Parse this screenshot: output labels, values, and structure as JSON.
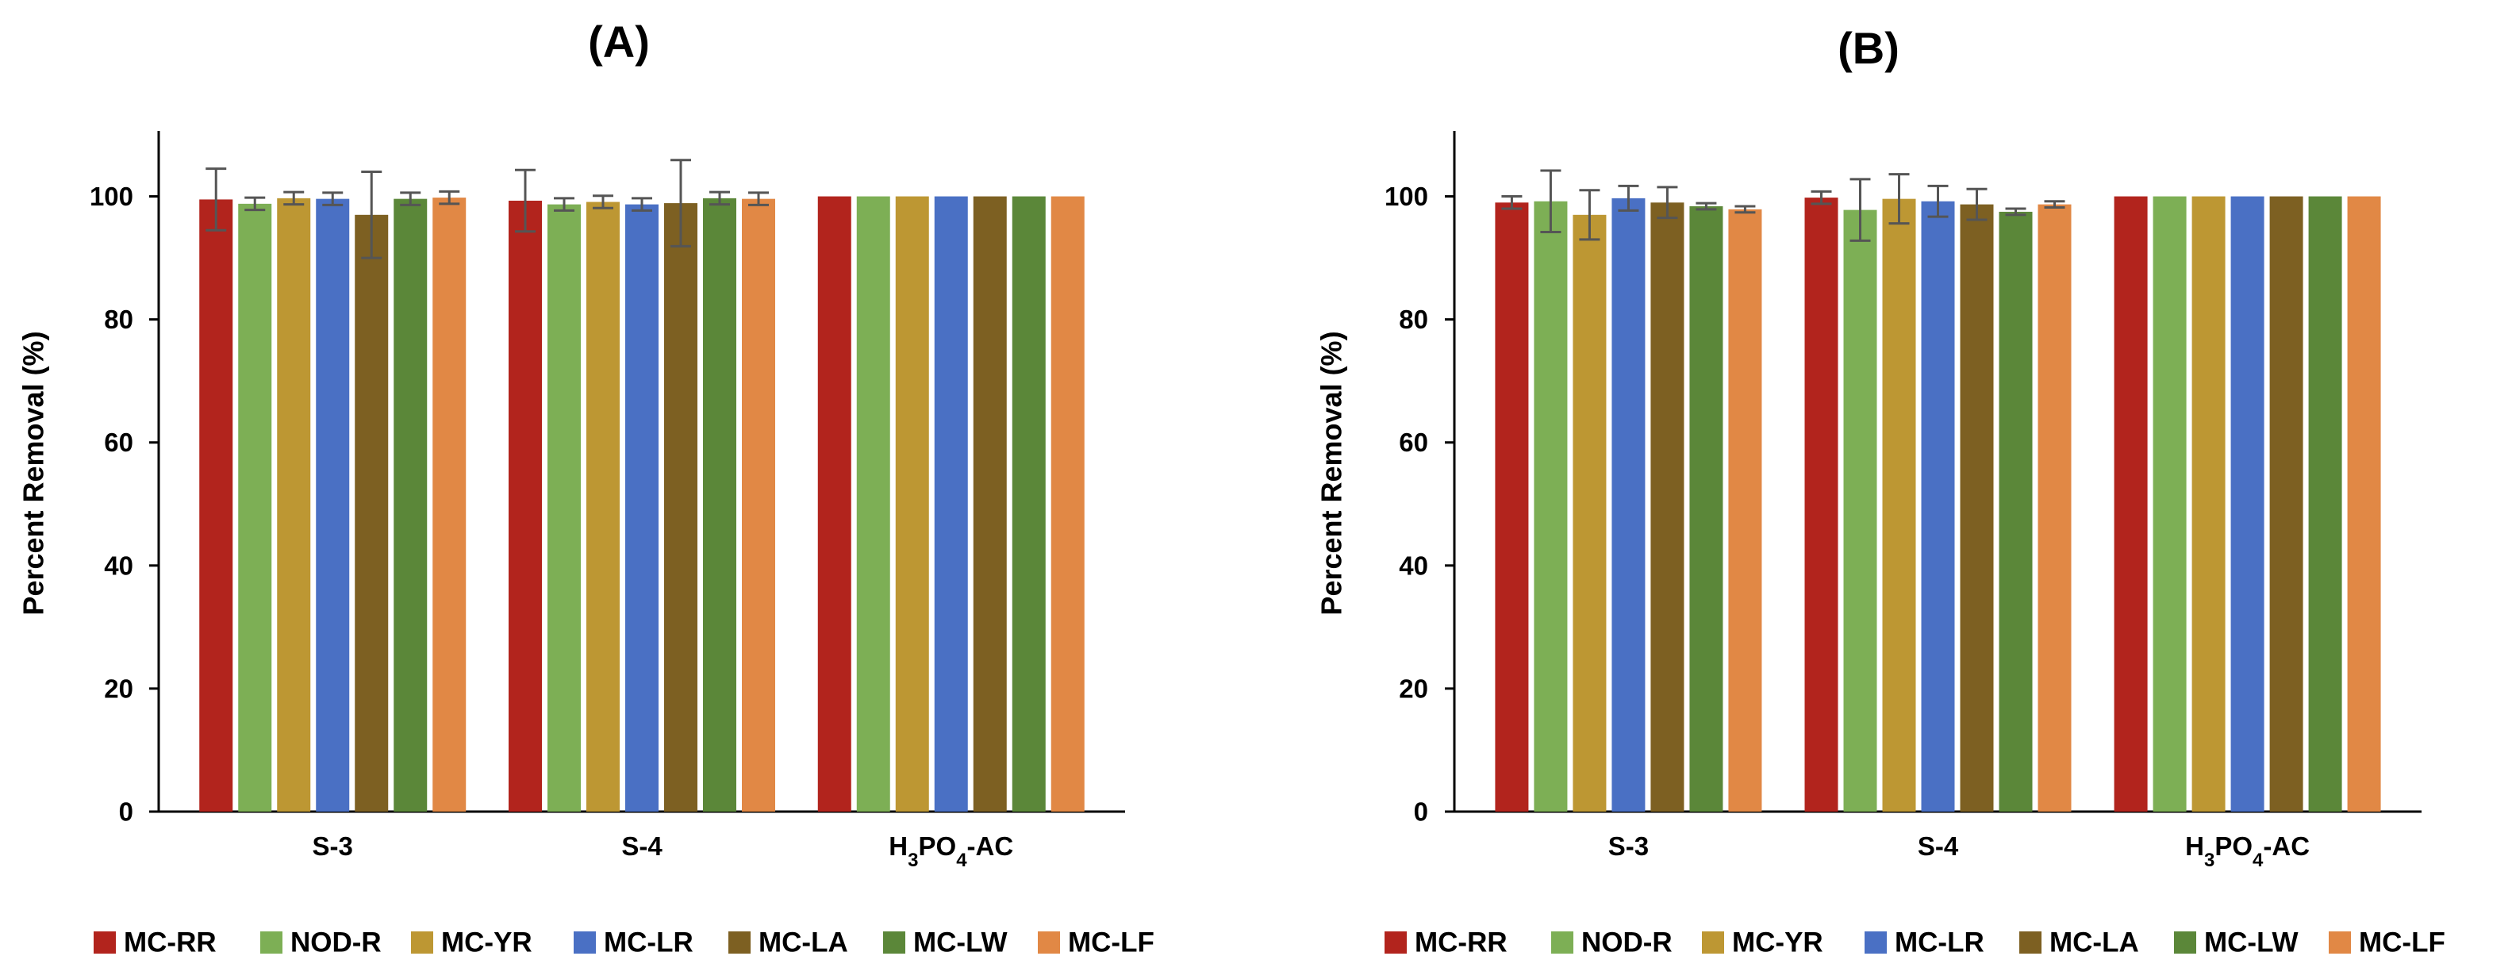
{
  "chart_data": [
    {
      "type": "bar",
      "title": "(A)",
      "xlabel": "",
      "ylabel": "Percent Removal (%)",
      "ylim": [
        0,
        110
      ],
      "yticks": [
        0,
        20,
        40,
        60,
        80,
        100
      ],
      "categories": [
        "S-3",
        "S-4",
        "H3PO4-AC"
      ],
      "categories_display": [
        {
          "main": "S-3",
          "parts": []
        },
        {
          "main": "S-4",
          "parts": []
        },
        {
          "main": "",
          "parts": [
            {
              "t": "H",
              "sub": false
            },
            {
              "t": "3",
              "sub": true
            },
            {
              "t": "PO",
              "sub": false
            },
            {
              "t": "4",
              "sub": true
            },
            {
              "t": "-AC",
              "sub": false
            }
          ]
        }
      ],
      "series": [
        {
          "name": "MC-RR",
          "values": [
            99.5,
            99.3,
            100
          ],
          "errors": [
            5.0,
            5.0,
            0
          ]
        },
        {
          "name": "NOD-R",
          "values": [
            98.8,
            98.7,
            100
          ],
          "errors": [
            1.0,
            1.0,
            0
          ]
        },
        {
          "name": "MC-YR",
          "values": [
            99.7,
            99.1,
            100
          ],
          "errors": [
            1.0,
            1.0,
            0
          ]
        },
        {
          "name": "MC-LR",
          "values": [
            99.6,
            98.7,
            100
          ],
          "errors": [
            1.0,
            1.0,
            0
          ]
        },
        {
          "name": "MC-LA",
          "values": [
            97.0,
            98.9,
            100
          ],
          "errors": [
            7.0,
            7.0,
            0
          ]
        },
        {
          "name": "MC-LW",
          "values": [
            99.6,
            99.7,
            100
          ],
          "errors": [
            1.0,
            1.0,
            0
          ]
        },
        {
          "name": "MC-LF",
          "values": [
            99.8,
            99.6,
            100
          ],
          "errors": [
            1.0,
            1.0,
            0
          ]
        }
      ]
    },
    {
      "type": "bar",
      "title": "(B)",
      "xlabel": "",
      "ylabel": "Percent Removal (%)",
      "ylim": [
        0,
        110
      ],
      "yticks": [
        0,
        20,
        40,
        60,
        80,
        100
      ],
      "categories": [
        "S-3",
        "S-4",
        "H3PO4-AC"
      ],
      "categories_display": [
        {
          "main": "S-3",
          "parts": []
        },
        {
          "main": "S-4",
          "parts": []
        },
        {
          "main": "",
          "parts": [
            {
              "t": "H",
              "sub": false
            },
            {
              "t": "3",
              "sub": true
            },
            {
              "t": "PO",
              "sub": false
            },
            {
              "t": "4",
              "sub": true
            },
            {
              "t": "-AC",
              "sub": false
            }
          ]
        }
      ],
      "series": [
        {
          "name": "MC-RR",
          "values": [
            99.0,
            99.8,
            100
          ],
          "errors": [
            1.0,
            1.0,
            0
          ]
        },
        {
          "name": "NOD-R",
          "values": [
            99.2,
            97.8,
            100
          ],
          "errors": [
            5.0,
            5.0,
            0
          ]
        },
        {
          "name": "MC-YR",
          "values": [
            97.0,
            99.6,
            100
          ],
          "errors": [
            4.0,
            4.0,
            0
          ]
        },
        {
          "name": "MC-LR",
          "values": [
            99.7,
            99.2,
            100
          ],
          "errors": [
            2.0,
            2.5,
            0
          ]
        },
        {
          "name": "MC-LA",
          "values": [
            99.0,
            98.7,
            100
          ],
          "errors": [
            2.5,
            2.5,
            0
          ]
        },
        {
          "name": "MC-LW",
          "values": [
            98.4,
            97.5,
            100
          ],
          "errors": [
            0.5,
            0.5,
            0
          ]
        },
        {
          "name": "MC-LF",
          "values": [
            97.9,
            98.7,
            100
          ],
          "errors": [
            0.5,
            0.5,
            0
          ]
        }
      ]
    }
  ],
  "legend": {
    "position": "bottom",
    "items": [
      {
        "name": "MC-RR",
        "color": "#B2241D"
      },
      {
        "name": "NOD-R",
        "color": "#7DAF55"
      },
      {
        "name": "MC-YR",
        "color": "#BD9733"
      },
      {
        "name": "MC-LR",
        "color": "#4A70C4"
      },
      {
        "name": "MC-LA",
        "color": "#7D6022"
      },
      {
        "name": "MC-LW",
        "color": "#5B8739"
      },
      {
        "name": "MC-LF",
        "color": "#E18845"
      }
    ]
  },
  "colors": {
    "axis": "#000000",
    "error_bar": "#555555"
  }
}
